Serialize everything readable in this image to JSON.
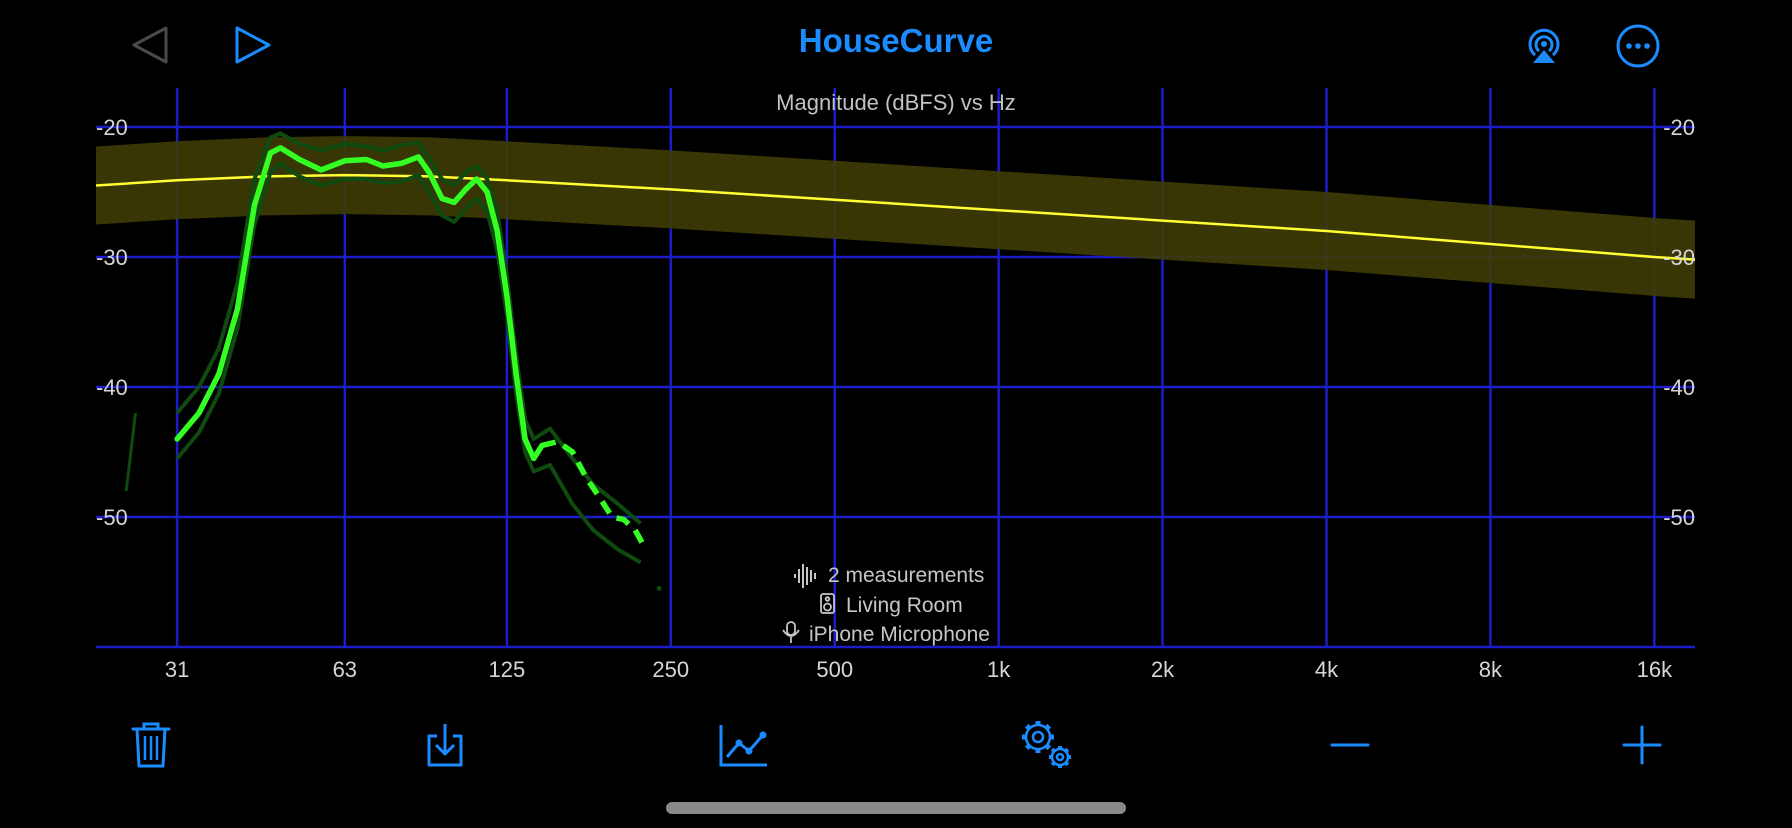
{
  "app": {
    "title": "HouseCurve"
  },
  "nav": {
    "back_icon": "back-triangle-icon",
    "play_icon": "play-icon",
    "airplay_icon": "airplay-icon",
    "more_icon": "more-icon"
  },
  "colors": {
    "accent": "#1a8cff",
    "grid": "#1c1cc8",
    "target": "#ffff33",
    "target_band": "#3f3c05",
    "measurement": "#33ff22",
    "measurement_shadow": "#0f4a0f"
  },
  "chart_data": {
    "type": "line",
    "title": "Magnitude (dBFS) vs Hz",
    "x_scale": "log",
    "xlim": [
      22,
      19000
    ],
    "ylim": [
      -60,
      -17
    ],
    "x_ticks": [
      {
        "value": 31,
        "label": "31"
      },
      {
        "value": 63,
        "label": "63"
      },
      {
        "value": 125,
        "label": "125"
      },
      {
        "value": 250,
        "label": "250"
      },
      {
        "value": 500,
        "label": "500"
      },
      {
        "value": 1000,
        "label": "1k"
      },
      {
        "value": 2000,
        "label": "2k"
      },
      {
        "value": 4000,
        "label": "4k"
      },
      {
        "value": 8000,
        "label": "8k"
      },
      {
        "value": 16000,
        "label": "16k"
      }
    ],
    "y_ticks": [
      {
        "value": -20,
        "label": "-20"
      },
      {
        "value": -30,
        "label": "-30"
      },
      {
        "value": -40,
        "label": "-40"
      },
      {
        "value": -50,
        "label": "-50"
      }
    ],
    "target_band_width_db": 6,
    "series": [
      {
        "role": "target",
        "x": [
          22,
          31,
          45,
          63,
          90,
          125,
          250,
          500,
          1000,
          2000,
          4000,
          8000,
          16000,
          19000
        ],
        "y": [
          -24.5,
          -24.1,
          -23.8,
          -23.7,
          -23.8,
          -24.1,
          -24.8,
          -25.6,
          -26.4,
          -27.2,
          -28.0,
          -29.0,
          -30.0,
          -30.2
        ]
      },
      {
        "role": "measurement",
        "x": [
          31,
          34,
          37,
          40,
          43,
          46,
          48,
          52,
          57,
          63,
          69,
          74,
          80,
          86,
          90,
          95,
          100,
          105,
          110,
          115,
          120,
          125,
          130,
          135,
          140,
          145
        ],
        "y": [
          -44,
          -42,
          -39,
          -34,
          -26,
          -22,
          -21.6,
          -22.5,
          -23.3,
          -22.6,
          -22.5,
          -23.0,
          -22.8,
          -22.3,
          -23.5,
          -25.5,
          -25.8,
          -24.8,
          -24.0,
          -25.0,
          -28.0,
          -33.0,
          -39.0,
          -44.0,
          -45.5,
          -44.5
        ]
      },
      {
        "role": "measurement-dashed",
        "x": [
          145,
          155,
          165,
          175,
          185,
          195,
          205,
          215,
          225
        ],
        "y": [
          -44.5,
          -44.2,
          -45.0,
          -47.0,
          -48.5,
          -50.0,
          -50.2,
          -51.0,
          -52.5
        ]
      },
      {
        "role": "measurement-shadow-upper",
        "x": [
          31,
          34,
          37,
          40,
          43,
          46,
          48,
          52,
          57,
          63,
          69,
          74,
          80,
          86,
          90,
          95,
          100,
          105,
          110,
          115,
          120,
          125,
          130,
          135,
          140,
          150,
          165,
          180,
          200,
          220
        ],
        "y": [
          -42,
          -40,
          -37,
          -32,
          -24,
          -20.8,
          -20.5,
          -21.3,
          -21.8,
          -21.3,
          -21.5,
          -21.8,
          -21.4,
          -21.2,
          -22.5,
          -24.0,
          -24.5,
          -23.5,
          -23.0,
          -24.0,
          -26.5,
          -31.5,
          -37.5,
          -42.5,
          -44.0,
          -43.2,
          -45.5,
          -47.5,
          -49.0,
          -50.5
        ]
      },
      {
        "role": "measurement-shadow-lower",
        "x": [
          31,
          34,
          37,
          40,
          43,
          46,
          48,
          52,
          57,
          63,
          69,
          74,
          80,
          86,
          90,
          95,
          100,
          105,
          110,
          115,
          120,
          125,
          130,
          135,
          140,
          150,
          165,
          180,
          200,
          220
        ],
        "y": [
          -45.5,
          -43.5,
          -40.5,
          -35.5,
          -27.5,
          -23.5,
          -22.8,
          -23.8,
          -24.5,
          -24.0,
          -24.0,
          -24.3,
          -24.2,
          -23.7,
          -25.0,
          -26.8,
          -27.3,
          -26.3,
          -25.5,
          -26.5,
          -29.5,
          -34.5,
          -40.5,
          -45.0,
          -46.5,
          -46.0,
          -49.0,
          -51.0,
          -52.5,
          -53.5
        ]
      },
      {
        "role": "stray-fragment",
        "x": [
          25,
          26
        ],
        "y": [
          -48,
          -42
        ]
      }
    ]
  },
  "info": {
    "measurements": "2 measurements",
    "room": "Living Room",
    "microphone": "iPhone Microphone"
  },
  "toolbar": {
    "delete_icon": "trash-icon",
    "export_icon": "download-tray-icon",
    "graph_icon": "graph-icon",
    "settings_icon": "gears-icon",
    "zoom_out_icon": "minus-icon",
    "zoom_in_icon": "plus-icon"
  }
}
